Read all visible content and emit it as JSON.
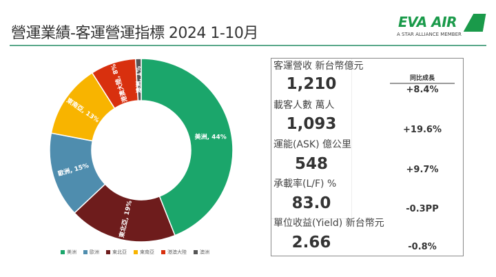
{
  "header": {
    "title": "營運業績-客運營運指標 2024 1-10月",
    "logo_text": "EVA AIR",
    "logo_sub": "A STAR ALLIANCE MEMBER"
  },
  "chart_data": {
    "type": "pie",
    "donut": true,
    "legend_position": "bottom",
    "slices": [
      {
        "label": "美洲",
        "value": 44,
        "color": "#1ba66b",
        "data_label": "美洲, 44%"
      },
      {
        "label": "東北亞",
        "value": 19,
        "color": "#6e1c1c",
        "data_label": "東北亞, 19%"
      },
      {
        "label": "歐洲",
        "value": 15,
        "color": "#4f8dae",
        "data_label": "歐洲, 15%"
      },
      {
        "label": "東南亞",
        "value": 13,
        "color": "#f8b400",
        "data_label": "東南亞, 13%"
      },
      {
        "label": "港澳大陸",
        "value": 8,
        "color": "#d8300e",
        "data_label": "港澳大陸, 8%"
      },
      {
        "label": "澳洲",
        "value": 1,
        "color": "#555555",
        "data_label": "澳洲, 1%"
      }
    ],
    "legend": [
      {
        "label": "美洲",
        "color": "#1ba66b"
      },
      {
        "label": "歐洲",
        "color": "#4f8dae"
      },
      {
        "label": "東北亞",
        "color": "#6e1c1c"
      },
      {
        "label": "東南亞",
        "color": "#f8b400"
      },
      {
        "label": "港澳大陸",
        "color": "#d8300e"
      },
      {
        "label": "澳洲",
        "color": "#555555"
      }
    ]
  },
  "panel": {
    "header": "客運營收 新台幣億元",
    "yoy_header": "同比成長",
    "rows": [
      {
        "value": "1,210",
        "yoy": "+8.4%",
        "unit_label": "載客人數  萬人"
      },
      {
        "value": "1,093",
        "yoy": "+19.6%",
        "unit_label": "運能(ASK)  億公里"
      },
      {
        "value": "548",
        "yoy": "+9.7%",
        "unit_label": "承載率(L/F)  %"
      },
      {
        "value": "83.0",
        "yoy": "-0.3PP",
        "unit_label": "單位收益(Yield)  新台幣元"
      },
      {
        "value": "2.66",
        "yoy": "-0.8%",
        "unit_label": ""
      }
    ]
  }
}
